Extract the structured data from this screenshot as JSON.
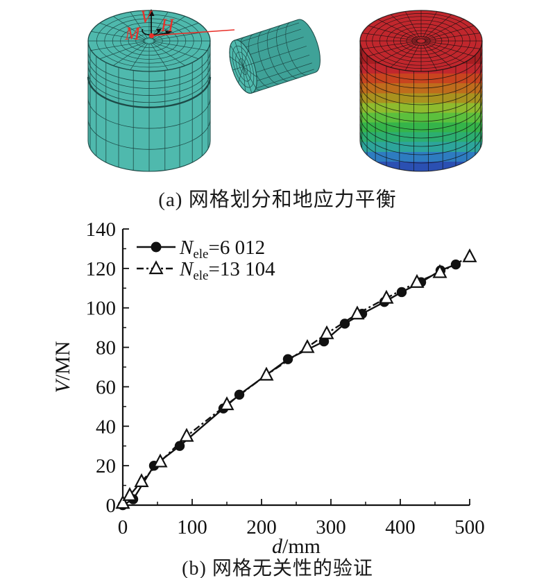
{
  "panel_a": {
    "caption": "(a) 网格划分和地应力平衡",
    "labels": {
      "V": "V",
      "H": "H",
      "M": "M"
    },
    "colors": {
      "mesh_teal": "#4fb9ad",
      "mesh_teal_shade": "#3fa298",
      "mesh_line": "#1d4a47",
      "annotation_red": "#e8312a",
      "arrow_black": "#111111",
      "rainbow_top": "#c1272d",
      "rainbow_bands": [
        "#a81e22",
        "#c1272d",
        "#c8441f",
        "#bf6c1c",
        "#a9921f",
        "#8ebb2e",
        "#5cc03d",
        "#35b44a",
        "#2cae70",
        "#2da59b",
        "#2e7cc0",
        "#2b50b2"
      ]
    }
  },
  "chart": {
    "caption": "(b) 网格无关性的验证"
  },
  "chart_data": {
    "type": "line",
    "title": "",
    "xlabel": "d/mm",
    "xlabel_var": "d",
    "xlabel_rest": "/mm",
    "ylabel": "V/MN",
    "ylabel_var": "V",
    "ylabel_rest": "/MN",
    "xlim": [
      0,
      500
    ],
    "ylim": [
      0,
      140
    ],
    "x_major_ticks": [
      0,
      100,
      200,
      300,
      400,
      500
    ],
    "x_minor_step": 50,
    "y_major_ticks": [
      0,
      20,
      40,
      60,
      80,
      100,
      120,
      140
    ],
    "y_minor_step": 10,
    "grid": false,
    "legend_position": "top-left",
    "ink_color": "#111111",
    "series": [
      {
        "name": "Nele=6 012",
        "label_sym": "N",
        "label_sub": "ele",
        "label_rest": "=6 012",
        "marker": "circle",
        "line_style": "solid",
        "x": [
          0,
          15,
          45,
          82,
          145,
          168,
          238,
          290,
          320,
          345,
          377,
          402,
          430,
          458,
          480
        ],
        "y": [
          0,
          3,
          20,
          30,
          49,
          56,
          74,
          83,
          92,
          97,
          103,
          108,
          113,
          119,
          122
        ]
      },
      {
        "name": "Nele=13 104",
        "label_sym": "N",
        "label_sub": "ele",
        "label_rest": "=13 104",
        "marker": "triangle",
        "line_style": "dash-dot",
        "x": [
          0,
          10,
          27,
          54,
          92,
          150,
          207,
          266,
          294,
          338,
          380,
          424,
          457,
          500
        ],
        "y": [
          1,
          5,
          12,
          22,
          35,
          51,
          66,
          80,
          87,
          97,
          105,
          113,
          118,
          126
        ]
      }
    ]
  }
}
